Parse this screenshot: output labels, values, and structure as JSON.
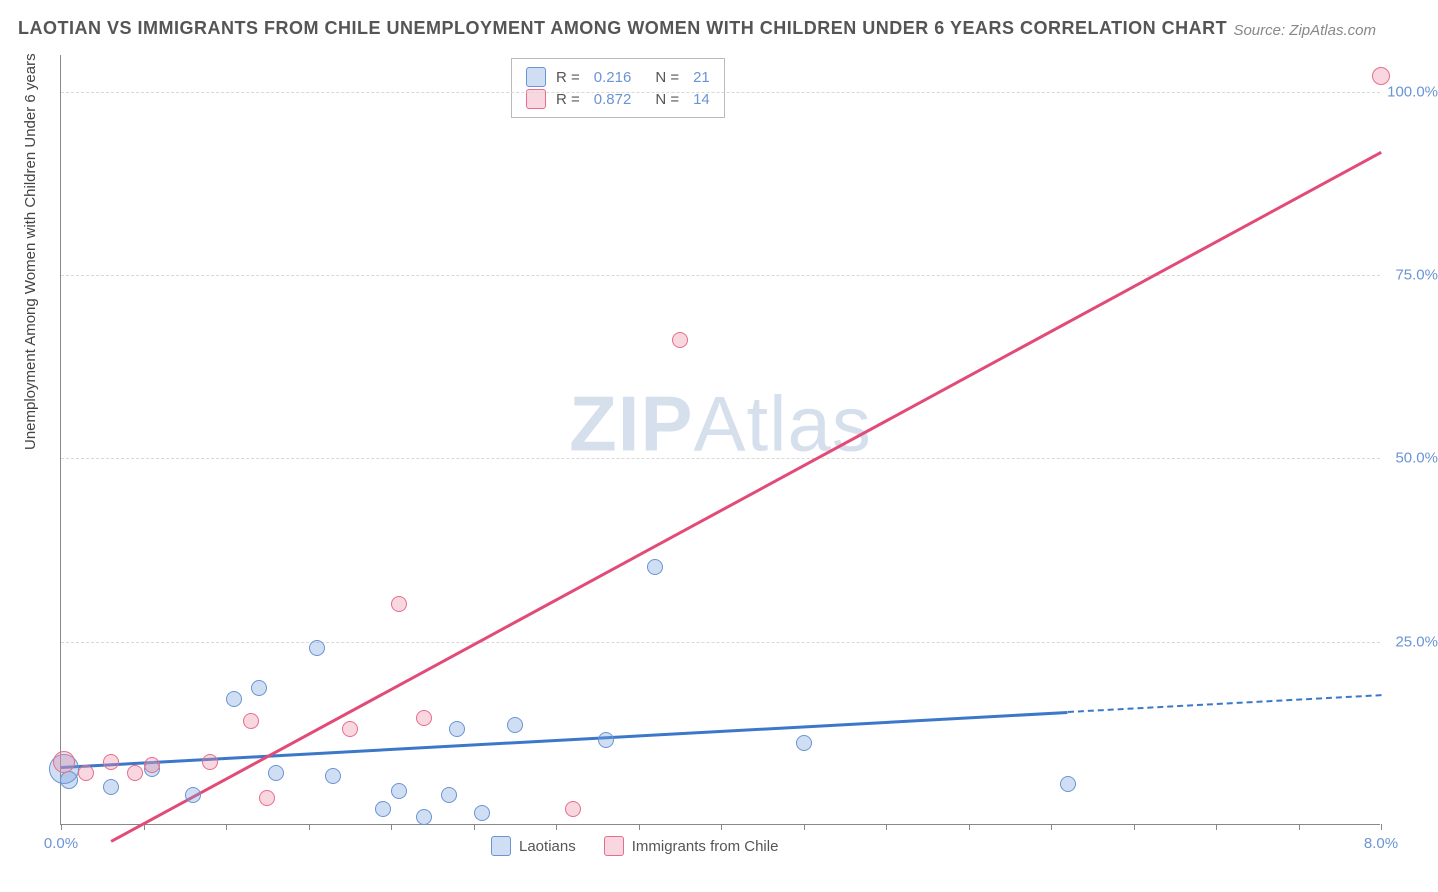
{
  "title": "LAOTIAN VS IMMIGRANTS FROM CHILE UNEMPLOYMENT AMONG WOMEN WITH CHILDREN UNDER 6 YEARS CORRELATION CHART",
  "source": "Source: ZipAtlas.com",
  "ylabel": "Unemployment Among Women with Children Under 6 years",
  "watermark_a": "ZIP",
  "watermark_b": "Atlas",
  "chart": {
    "type": "scatter",
    "xlim": [
      0.0,
      8.0
    ],
    "ylim": [
      0.0,
      105.0
    ],
    "xtick_start_label": "0.0%",
    "xtick_end_label": "8.0%",
    "xtick_positions": [
      0,
      0.5,
      1.0,
      1.5,
      2.0,
      2.5,
      3.0,
      3.5,
      4.0,
      4.5,
      5.0,
      5.5,
      6.0,
      6.5,
      7.0,
      7.5,
      8.0
    ],
    "yticks": [
      {
        "v": 25.0,
        "label": "25.0%"
      },
      {
        "v": 50.0,
        "label": "50.0%"
      },
      {
        "v": 75.0,
        "label": "75.0%"
      },
      {
        "v": 100.0,
        "label": "100.0%"
      }
    ],
    "background_color": "#ffffff",
    "grid_color": "#d8d8d8",
    "axis_color": "#888888",
    "tick_label_color": "#6a94d4",
    "series": [
      {
        "name": "Laotians",
        "color_fill": "rgba(120,160,220,0.35)",
        "color_stroke": "#6a94d4",
        "marker_radius": 8,
        "R": "0.216",
        "N": "21",
        "trend": {
          "x1": 0.0,
          "y1": 8.0,
          "x2": 6.1,
          "y2": 15.5,
          "dash_to_x": 8.0,
          "dash_to_y": 17.8,
          "color": "#3b78c9"
        },
        "points": [
          {
            "x": 0.02,
            "y": 7.5,
            "r": 15
          },
          {
            "x": 0.05,
            "y": 6.0,
            "r": 9
          },
          {
            "x": 0.3,
            "y": 5.0,
            "r": 8
          },
          {
            "x": 0.55,
            "y": 7.5,
            "r": 8
          },
          {
            "x": 0.8,
            "y": 4.0,
            "r": 8
          },
          {
            "x": 1.05,
            "y": 17.0,
            "r": 8
          },
          {
            "x": 1.2,
            "y": 18.5,
            "r": 8
          },
          {
            "x": 1.3,
            "y": 7.0,
            "r": 8
          },
          {
            "x": 1.55,
            "y": 24.0,
            "r": 8
          },
          {
            "x": 1.65,
            "y": 6.5,
            "r": 8
          },
          {
            "x": 1.95,
            "y": 2.0,
            "r": 8
          },
          {
            "x": 2.05,
            "y": 4.5,
            "r": 8
          },
          {
            "x": 2.2,
            "y": 1.0,
            "r": 8
          },
          {
            "x": 2.35,
            "y": 4.0,
            "r": 8
          },
          {
            "x": 2.4,
            "y": 13.0,
            "r": 8
          },
          {
            "x": 2.55,
            "y": 1.5,
            "r": 8
          },
          {
            "x": 2.75,
            "y": 13.5,
            "r": 8
          },
          {
            "x": 3.3,
            "y": 11.5,
            "r": 8
          },
          {
            "x": 3.6,
            "y": 35.0,
            "r": 8
          },
          {
            "x": 4.5,
            "y": 11.0,
            "r": 8
          },
          {
            "x": 6.1,
            "y": 5.5,
            "r": 8
          }
        ]
      },
      {
        "name": "Immigrants from Chile",
        "color_fill": "rgba(235,140,165,0.35)",
        "color_stroke": "#e86d8a",
        "marker_radius": 8,
        "R": "0.872",
        "N": "14",
        "trend": {
          "x1": 0.3,
          "y1": -2.0,
          "x2": 8.0,
          "y2": 92.0,
          "color": "#e24b77"
        },
        "points": [
          {
            "x": 0.02,
            "y": 8.5,
            "r": 11
          },
          {
            "x": 0.15,
            "y": 7.0,
            "r": 8
          },
          {
            "x": 0.3,
            "y": 8.5,
            "r": 8
          },
          {
            "x": 0.45,
            "y": 7.0,
            "r": 8
          },
          {
            "x": 0.55,
            "y": 8.0,
            "r": 8
          },
          {
            "x": 0.9,
            "y": 8.5,
            "r": 8
          },
          {
            "x": 1.15,
            "y": 14.0,
            "r": 8
          },
          {
            "x": 1.25,
            "y": 3.5,
            "r": 8
          },
          {
            "x": 1.75,
            "y": 13.0,
            "r": 8
          },
          {
            "x": 2.05,
            "y": 30.0,
            "r": 8
          },
          {
            "x": 2.2,
            "y": 14.5,
            "r": 8
          },
          {
            "x": 3.1,
            "y": 2.0,
            "r": 8
          },
          {
            "x": 3.75,
            "y": 66.0,
            "r": 8
          },
          {
            "x": 8.0,
            "y": 102.0,
            "r": 9
          }
        ]
      }
    ]
  },
  "legend_bottom": [
    {
      "label": "Laotians",
      "fill": "rgba(120,160,220,0.35)",
      "stroke": "#6a94d4"
    },
    {
      "label": "Immigrants from Chile",
      "fill": "rgba(235,140,165,0.35)",
      "stroke": "#e86d8a"
    }
  ]
}
